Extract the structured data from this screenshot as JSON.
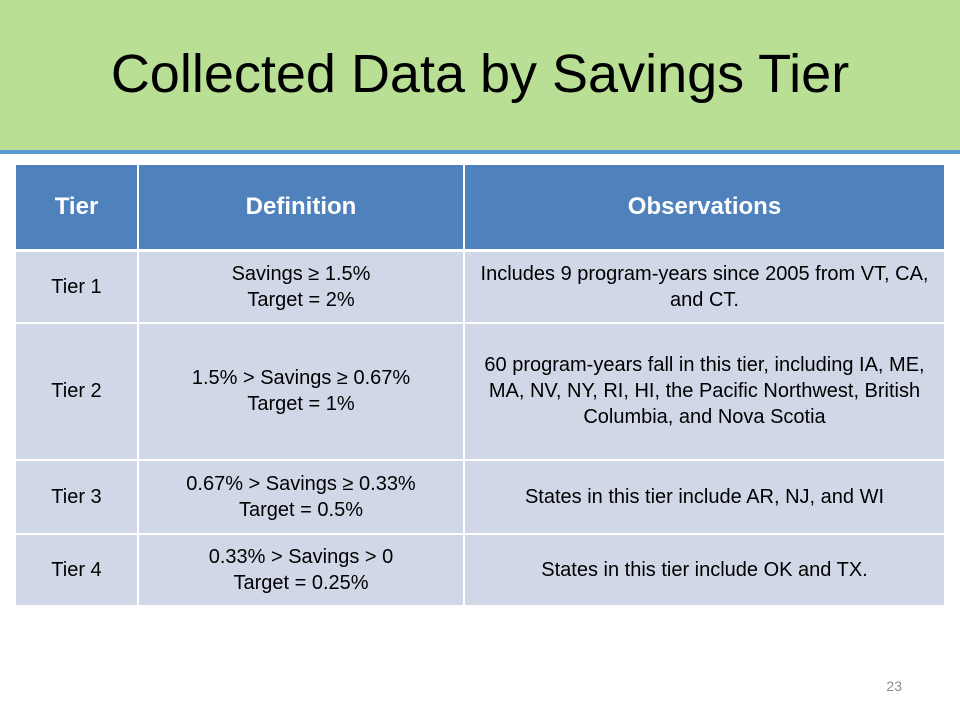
{
  "slide": {
    "title": "Collected Data by Savings Tier",
    "page_number": "23",
    "colors": {
      "title_band": "#b9df94",
      "title_rule": "#5b9bd5",
      "header_fill": "#4f81bd",
      "row_fill": "#d0d8e8"
    }
  },
  "table": {
    "headers": [
      "Tier",
      "Definition",
      "Observations"
    ],
    "rows": [
      {
        "tier": "Tier 1",
        "definition_line1": "Savings ≥ 1.5%",
        "definition_line2": "Target = 2%",
        "observations": "Includes 9 program-years since 2005 from VT, CA, and CT."
      },
      {
        "tier": "Tier 2",
        "definition_line1": "1.5% > Savings ≥ 0.67%",
        "definition_line2": "Target = 1%",
        "observations": "60 program-years fall in this tier, including IA, ME, MA, NV, NY, RI, HI, the Pacific Northwest, British Columbia, and Nova Scotia"
      },
      {
        "tier": "Tier 3",
        "definition_line1": "0.67% > Savings ≥ 0.33%",
        "definition_line2": "Target = 0.5%",
        "observations": "States in this tier include AR, NJ, and WI"
      },
      {
        "tier": "Tier 4",
        "definition_line1": "0.33% > Savings > 0",
        "definition_line2": "Target = 0.25%",
        "observations": "States in this tier include OK and TX."
      }
    ]
  }
}
